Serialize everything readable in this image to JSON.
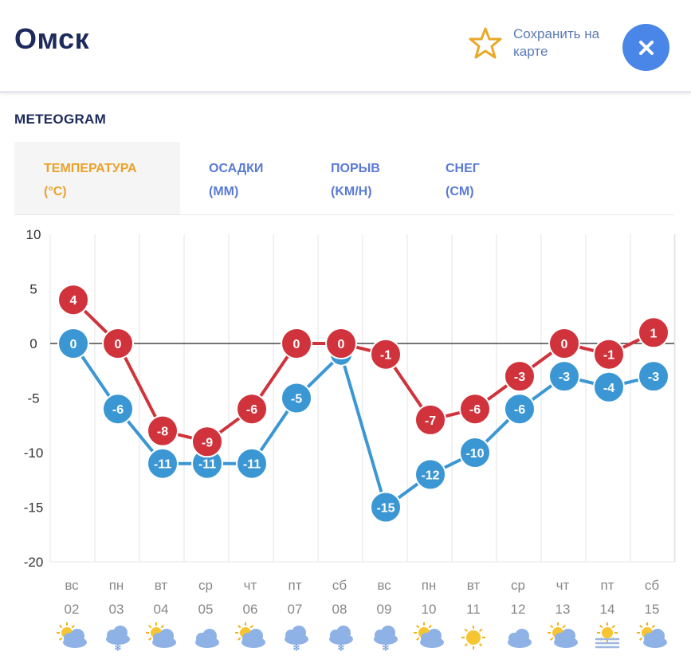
{
  "header": {
    "city": "Омск",
    "save_label": "Сохранить на карте",
    "close_icon": "close-icon",
    "star_icon": "star-icon"
  },
  "section": {
    "title": "METEOGRAM"
  },
  "tabs": [
    {
      "line1": "ТЕМПЕРАТУРА",
      "line2": "(°C)",
      "active": true
    },
    {
      "line1": "ОСАДКИ",
      "line2": "(MM)",
      "active": false
    },
    {
      "line1": "ПОРЫВ",
      "line2": "(KM/H)",
      "active": false
    },
    {
      "line1": "СНЕГ",
      "line2": "(CM)",
      "active": false
    }
  ],
  "colors": {
    "max_series": "#d0333b",
    "min_series": "#3b97d3",
    "active_tab": "#eaa22b",
    "tab": "#5a7bd5",
    "close_bg": "#4a86e8"
  },
  "chart_data": {
    "type": "line",
    "title": "",
    "xlabel": "",
    "ylabel": "",
    "ylim": [
      -20,
      10
    ],
    "yticks": [
      10,
      5,
      0,
      -5,
      -10,
      -15,
      -20
    ],
    "days": [
      "вс",
      "пн",
      "вт",
      "ср",
      "чт",
      "пт",
      "сб",
      "вс",
      "пн",
      "вт",
      "ср",
      "чт",
      "пт",
      "сб"
    ],
    "dates": [
      "02",
      "03",
      "04",
      "05",
      "06",
      "07",
      "08",
      "09",
      "10",
      "11",
      "12",
      "13",
      "14",
      "15"
    ],
    "weather_icons": [
      "sun-cloud-icon",
      "snow-cloud-icon",
      "sun-cloud-icon",
      "cloud-icon",
      "sun-cloud-icon",
      "snow-cloud-icon",
      "snow-cloud-icon",
      "snow-cloud-icon",
      "sun-cloud-icon",
      "sun-icon",
      "cloud-icon",
      "sun-cloud-icon",
      "sun-fog-icon",
      "sun-cloud-icon"
    ],
    "series": [
      {
        "name": "max",
        "values": [
          4,
          0,
          -8,
          -9,
          -6,
          0,
          0,
          -1,
          -7,
          -6,
          -3,
          0,
          -1,
          1
        ]
      },
      {
        "name": "min",
        "values": [
          0,
          -6,
          -11,
          -11,
          -11,
          -5,
          -1,
          -15,
          -12,
          -10,
          -6,
          -3,
          -4,
          -3
        ]
      }
    ],
    "min_labels": [
      "0",
      "-6",
      "-11",
      "-11",
      "-11",
      "-5",
      "",
      "-15",
      "-12",
      "-10",
      "-6",
      "-3",
      "-4",
      "-3"
    ],
    "max_labels": [
      "4",
      "0",
      "-8",
      "-9",
      "-6",
      "0",
      "0",
      "-1",
      "-7",
      "-6",
      "-3",
      "0",
      "-1",
      "1"
    ]
  }
}
